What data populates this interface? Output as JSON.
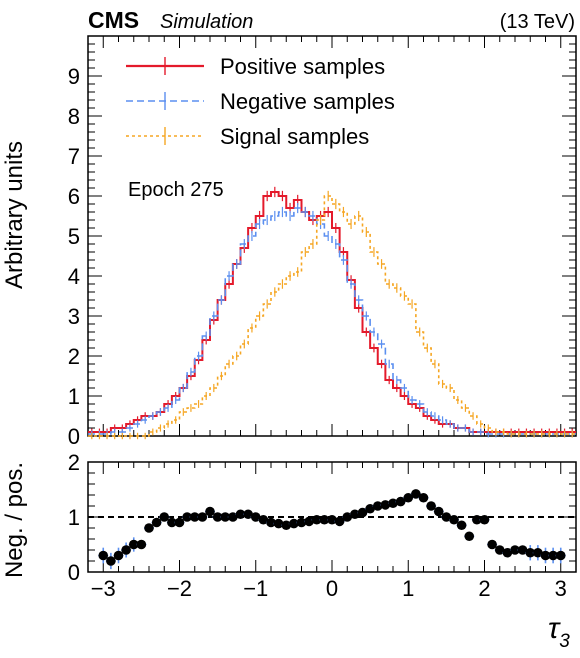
{
  "header": {
    "experiment": "CMS",
    "status": "Simulation",
    "energy": "(13 TeV)"
  },
  "annotation": "Epoch 275",
  "chart_data": [
    {
      "type": "line",
      "panel": "main",
      "ylabel": "Arbitrary units",
      "ylim": [
        0,
        10
      ],
      "yticks": [
        "0",
        "1",
        "2",
        "3",
        "4",
        "5",
        "6",
        "7",
        "8",
        "9"
      ],
      "xlim": [
        -3.2,
        3.2
      ],
      "bin_edges_start": -3.2,
      "bin_width": 0.1,
      "legend_position": "top-left",
      "series": [
        {
          "name": "Positive samples",
          "color": "#e41a2b",
          "style": "solid",
          "values": [
            0.1,
            0.1,
            0.1,
            0.2,
            0.2,
            0.3,
            0.4,
            0.5,
            0.5,
            0.6,
            0.8,
            1.0,
            1.2,
            1.5,
            1.9,
            2.4,
            2.9,
            3.4,
            3.8,
            4.3,
            4.7,
            5.2,
            5.5,
            6.0,
            6.1,
            6.0,
            5.7,
            5.9,
            5.6,
            5.4,
            5.5,
            5.6,
            5.2,
            4.6,
            3.9,
            3.2,
            2.6,
            2.2,
            1.8,
            1.4,
            1.2,
            1.0,
            0.8,
            0.7,
            0.5,
            0.4,
            0.3,
            0.3,
            0.2,
            0.2,
            0.1,
            0.1,
            0.1,
            0.1,
            0.1,
            0.1,
            0.1,
            0.1,
            0.1,
            0.1,
            0.1,
            0.1,
            0.1,
            0.1
          ]
        },
        {
          "name": "Negative samples",
          "color": "#5b8ff0",
          "style": "dashed",
          "values": [
            0.05,
            0.05,
            0.05,
            0.1,
            0.1,
            0.2,
            0.3,
            0.4,
            0.5,
            0.6,
            0.7,
            0.9,
            1.2,
            1.6,
            2.0,
            2.5,
            3.0,
            3.4,
            4.0,
            4.3,
            4.8,
            5.0,
            5.3,
            5.4,
            5.5,
            5.6,
            5.5,
            5.7,
            5.6,
            5.5,
            5.3,
            5.0,
            4.8,
            4.4,
            3.8,
            3.4,
            3.0,
            2.6,
            2.3,
            1.8,
            1.4,
            1.2,
            0.9,
            0.8,
            0.6,
            0.5,
            0.4,
            0.3,
            0.2,
            0.2,
            0.1,
            0.1,
            0.05,
            0.05,
            0.05,
            0.05,
            0.05,
            0.05,
            0.05,
            0.05,
            0.05,
            0.05,
            0.05,
            0.05
          ]
        },
        {
          "name": "Signal samples",
          "color": "#f5a623",
          "style": "dotted",
          "values": [
            0,
            0,
            0,
            0,
            0,
            0,
            0,
            0,
            0.1,
            0.2,
            0.3,
            0.4,
            0.6,
            0.7,
            0.8,
            1.0,
            1.2,
            1.5,
            1.8,
            2.0,
            2.3,
            2.7,
            3.0,
            3.3,
            3.6,
            3.8,
            4.0,
            4.1,
            4.6,
            4.8,
            5.4,
            6.0,
            5.8,
            5.6,
            5.3,
            5.5,
            5.1,
            4.6,
            4.3,
            3.8,
            3.7,
            3.5,
            3.3,
            2.6,
            2.2,
            1.8,
            1.3,
            1.2,
            0.9,
            0.7,
            0.5,
            0.3,
            0.2,
            0.1,
            0.1,
            0.05,
            0.05,
            0.05,
            0.05,
            0.05,
            0.05,
            0.05,
            0.05,
            0.05
          ]
        }
      ]
    },
    {
      "type": "scatter",
      "panel": "ratio",
      "ylabel": "Neg. / pos.",
      "xlabel": "τ3",
      "ylim": [
        0,
        2
      ],
      "yticks": [
        "0",
        "1",
        "2"
      ],
      "xlim": [
        -3.2,
        3.2
      ],
      "xticks": [
        "−3",
        "−2",
        "−1",
        "0",
        "1",
        "2",
        "3"
      ],
      "reference_line": 1.0,
      "x": [
        -3.0,
        -2.9,
        -2.8,
        -2.7,
        -2.6,
        -2.5,
        -2.4,
        -2.3,
        -2.2,
        -2.1,
        -2.0,
        -1.9,
        -1.8,
        -1.7,
        -1.6,
        -1.5,
        -1.4,
        -1.3,
        -1.2,
        -1.1,
        -1.0,
        -0.9,
        -0.8,
        -0.7,
        -0.6,
        -0.5,
        -0.4,
        -0.3,
        -0.2,
        -0.1,
        0.0,
        0.1,
        0.2,
        0.3,
        0.4,
        0.5,
        0.6,
        0.7,
        0.8,
        0.9,
        1.0,
        1.1,
        1.2,
        1.3,
        1.4,
        1.5,
        1.6,
        1.7,
        1.8,
        1.9,
        2.0,
        2.1,
        2.2,
        2.3,
        2.4,
        2.5,
        2.6,
        2.7,
        2.8,
        2.9,
        3.0
      ],
      "y": [
        0.3,
        0.2,
        0.3,
        0.4,
        0.5,
        0.5,
        0.8,
        0.9,
        1.0,
        0.9,
        0.9,
        1.0,
        1.0,
        1.0,
        1.1,
        1.0,
        1.0,
        1.0,
        1.05,
        1.05,
        1.0,
        0.95,
        0.9,
        0.88,
        0.85,
        0.88,
        0.9,
        0.92,
        0.95,
        0.95,
        0.95,
        0.92,
        1.0,
        1.05,
        1.08,
        1.15,
        1.2,
        1.22,
        1.25,
        1.28,
        1.35,
        1.42,
        1.35,
        1.2,
        1.1,
        1.0,
        0.95,
        0.85,
        0.65,
        0.95,
        0.95,
        0.5,
        0.4,
        0.35,
        0.4,
        0.4,
        0.35,
        0.35,
        0.3,
        0.3,
        0.3
      ]
    }
  ]
}
